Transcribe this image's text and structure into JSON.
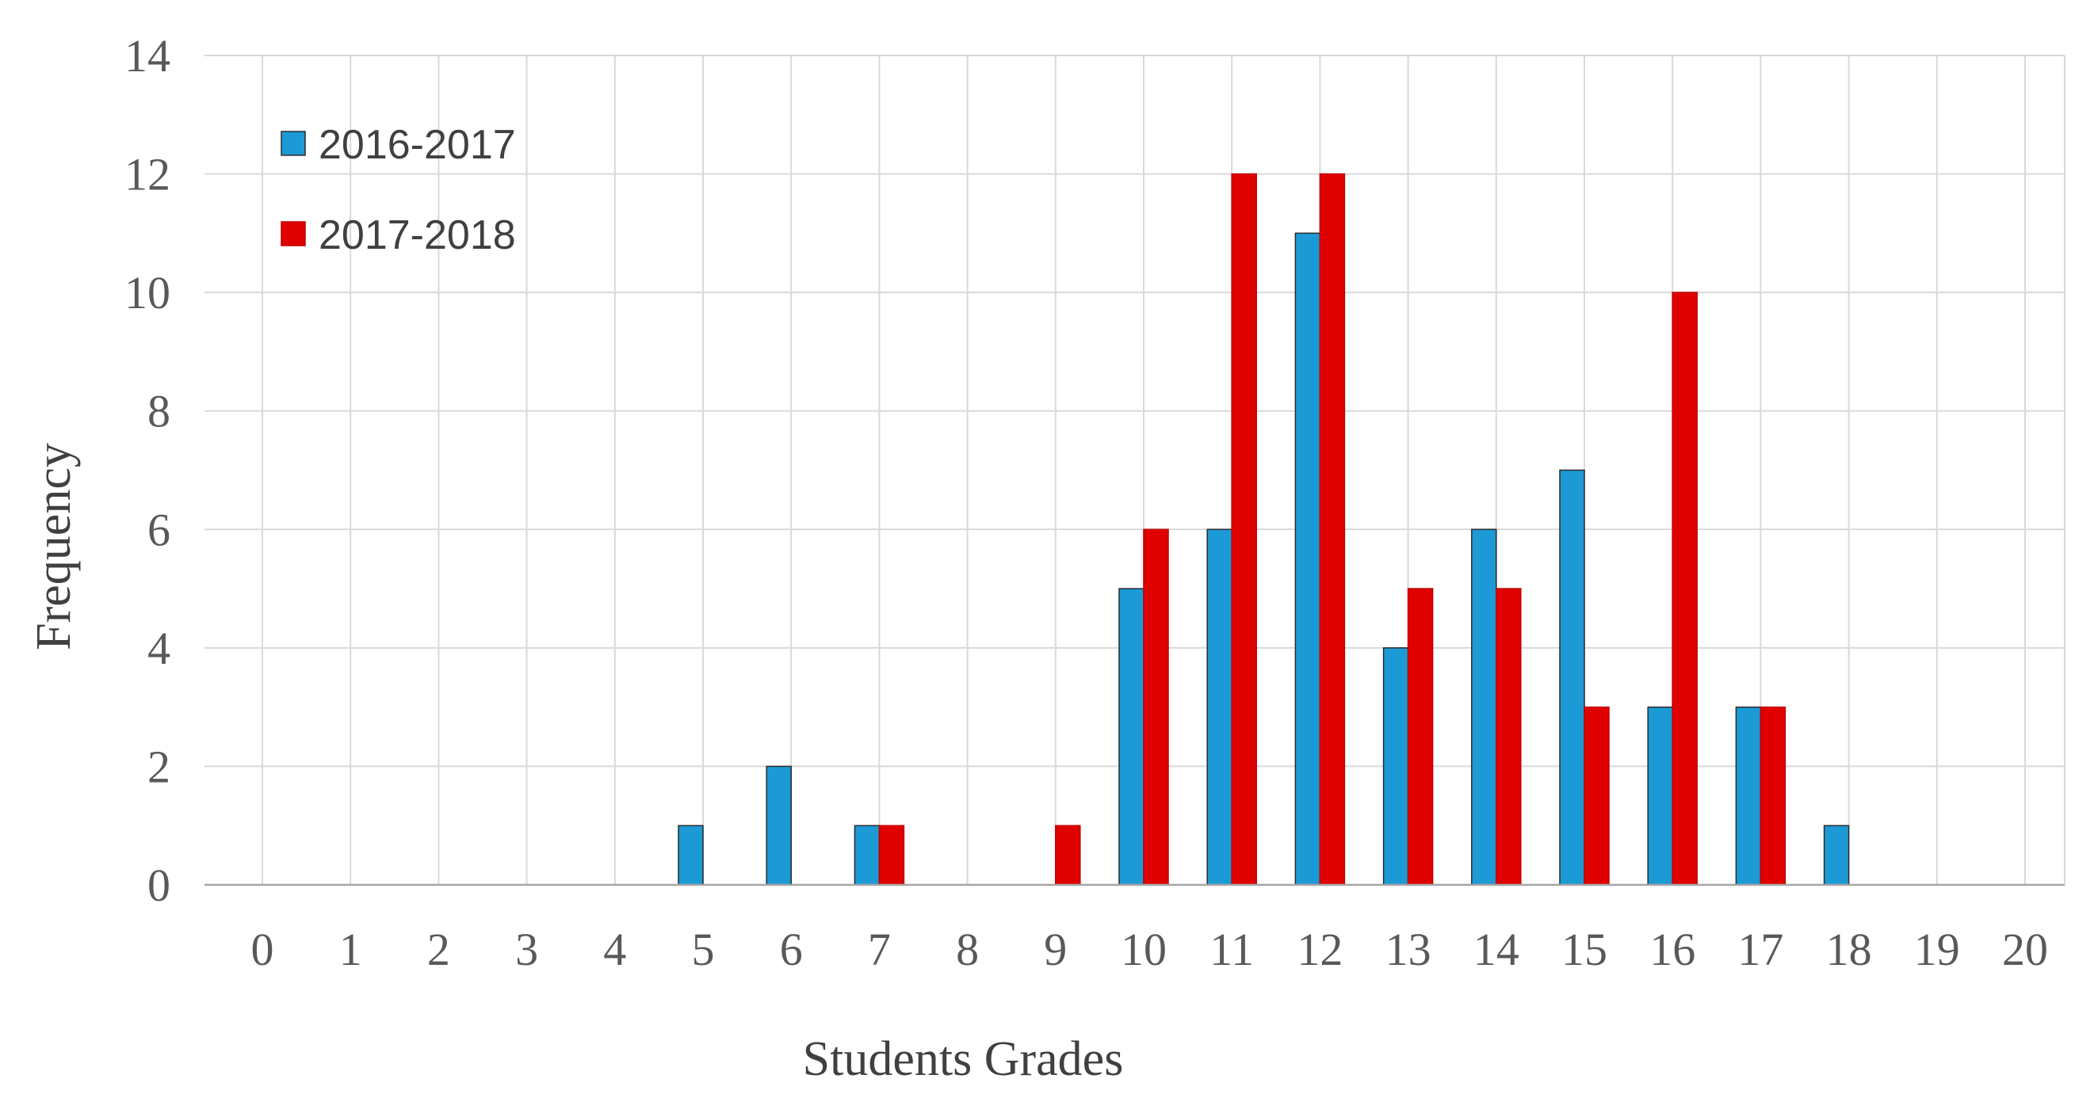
{
  "chart_data": {
    "type": "bar",
    "title": "",
    "xlabel": "Students Grades",
    "ylabel": "Frequency",
    "categories": [
      "0",
      "1",
      "2",
      "3",
      "4",
      "5",
      "6",
      "7",
      "8",
      "9",
      "10",
      "11",
      "12",
      "13",
      "14",
      "15",
      "16",
      "17",
      "18",
      "19",
      "20"
    ],
    "ylim": [
      0,
      14
    ],
    "yticks": [
      0,
      2,
      4,
      6,
      8,
      10,
      12,
      14
    ],
    "grid": "both",
    "legend_position": "top-left",
    "series": [
      {
        "name": "2016-2017",
        "color": "#1C9AD6",
        "values": [
          0,
          0,
          0,
          0,
          0,
          1,
          2,
          1,
          0,
          0,
          5,
          6,
          11,
          4,
          6,
          7,
          3,
          3,
          1,
          0,
          0
        ]
      },
      {
        "name": "2017-2018",
        "color": "#E00000",
        "values": [
          0,
          0,
          0,
          0,
          0,
          0,
          0,
          1,
          0,
          1,
          6,
          12,
          12,
          5,
          5,
          3,
          10,
          3,
          0,
          0,
          0
        ]
      }
    ]
  }
}
